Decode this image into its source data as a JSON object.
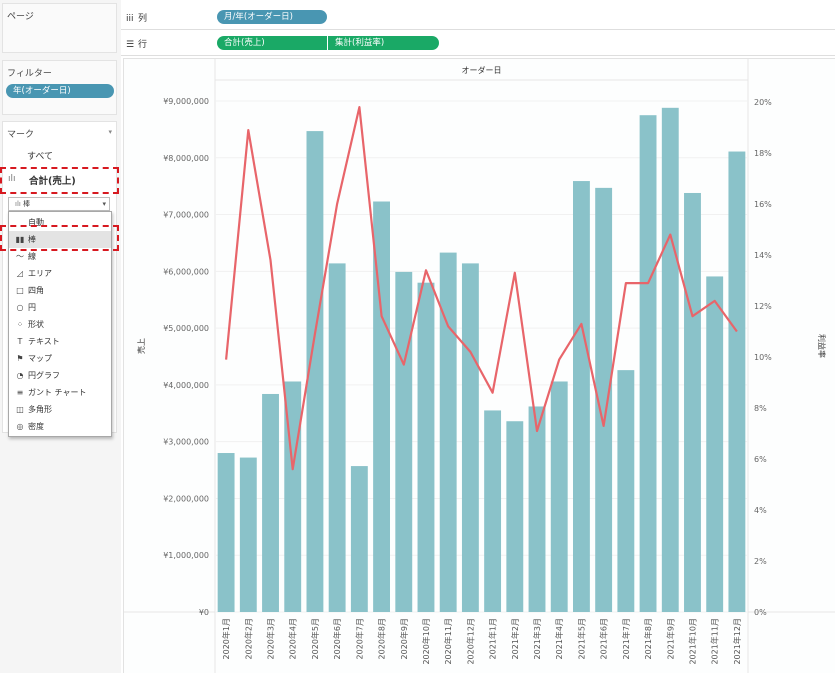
{
  "left": {
    "pages_title": "ページ",
    "filters_title": "フィルター",
    "filter_pill": "年(オーダー日)",
    "marks_title": "マーク",
    "marks_all": "すべて",
    "marks_sales_card": "合計(売上)",
    "mark_type_selected": "棒",
    "mark_type_options": [
      {
        "icon": "",
        "label": "自動"
      },
      {
        "icon": "▮▮",
        "label": "棒"
      },
      {
        "icon": "〜",
        "label": "線"
      },
      {
        "icon": "◿",
        "label": "エリア"
      },
      {
        "icon": "□",
        "label": "四角"
      },
      {
        "icon": "○",
        "label": "円"
      },
      {
        "icon": "⁘",
        "label": "形状"
      },
      {
        "icon": "T",
        "label": "テキスト"
      },
      {
        "icon": "⚑",
        "label": "マップ"
      },
      {
        "icon": "◔",
        "label": "円グラフ"
      },
      {
        "icon": "≡",
        "label": "ガント チャート"
      },
      {
        "icon": "◫",
        "label": "多角形"
      },
      {
        "icon": "◎",
        "label": "密度"
      }
    ]
  },
  "shelves": {
    "columns_label": "列",
    "columns_pill": "月/年(オーダー日)",
    "rows_label": "行",
    "rows_pill_1": "合計(売上)",
    "rows_pill_2": "集計(利益率)"
  },
  "colors": {
    "bar": "#8ac2c9",
    "line": "#e8656a",
    "pill_blue": "#4996b2",
    "pill_green": "#1aa966",
    "highlight": "#d71920"
  },
  "chart_data": {
    "type": "bar",
    "title": "オーダー日",
    "ylabel": "売上",
    "y2label": "利益率",
    "ylim": [
      0,
      9000000
    ],
    "y2lim": [
      0,
      0.2
    ],
    "y_ticks": [
      "¥0",
      "¥1,000,000",
      "¥2,000,000",
      "¥3,000,000",
      "¥4,000,000",
      "¥5,000,000",
      "¥6,000,000",
      "¥7,000,000",
      "¥8,000,000",
      "¥9,000,000"
    ],
    "y2_ticks": [
      "0%",
      "2%",
      "4%",
      "6%",
      "8%",
      "10%",
      "12%",
      "14%",
      "16%",
      "18%",
      "20%"
    ],
    "categories": [
      "2020年1月",
      "2020年2月",
      "2020年3月",
      "2020年4月",
      "2020年5月",
      "2020年6月",
      "2020年7月",
      "2020年8月",
      "2020年9月",
      "2020年10月",
      "2020年11月",
      "2020年12月",
      "2021年1月",
      "2021年2月",
      "2021年3月",
      "2021年4月",
      "2021年5月",
      "2021年6月",
      "2021年7月",
      "2021年8月",
      "2021年9月",
      "2021年10月",
      "2021年11月",
      "2021年12月"
    ],
    "series": [
      {
        "type": "bar",
        "values": [
          2800000,
          2720000,
          3840000,
          4060000,
          8470000,
          6140000,
          2570000,
          7230000,
          5990000,
          5800000,
          6330000,
          6140000,
          3550000,
          3360000,
          3620000,
          4060000,
          7590000,
          7470000,
          4260000,
          8750000,
          8880000,
          7380000,
          5910000,
          8110000
        ]
      },
      {
        "type": "line",
        "axis": "right",
        "values": [
          0.099,
          0.189,
          0.138,
          0.056,
          0.109,
          0.16,
          0.198,
          0.116,
          0.097,
          0.134,
          0.112,
          0.102,
          0.086,
          0.133,
          0.071,
          0.099,
          0.113,
          0.073,
          0.129,
          0.129,
          0.148,
          0.116,
          0.122,
          0.11
        ]
      }
    ]
  }
}
